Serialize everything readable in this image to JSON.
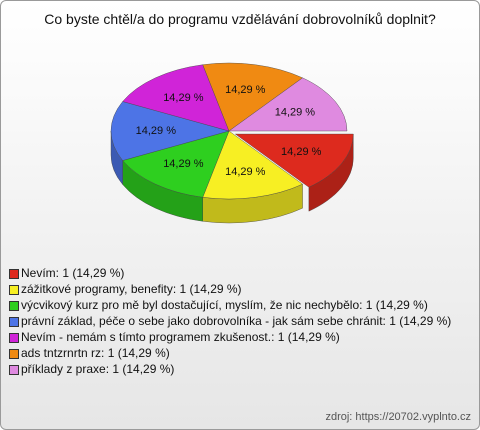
{
  "chart_data": {
    "type": "pie",
    "title": "Co byste chtěl/a do programu vzdělávání dobrovolníků doplnit?",
    "categories": [
      "Nevím: 1 (14,29 %)",
      "zážitkové programy, benefity: 1 (14,29 %)",
      "výcvikový kurz pro mě byl dostačující, myslím, že nic nechybělo: 1 (14,29 %)",
      "právní základ, péče o sebe jako dobrovolníka - jak sám sebe chránit: 1 (14,29 %)",
      "Nevím - nemám s tímto programem zkušenost.: 1 (14,29 %)",
      "ads tntzrnrtn  rz: 1 (14,29 %)",
      "příklady z praxe: 1 (14,29 %)"
    ],
    "values": [
      14.29,
      14.29,
      14.29,
      14.29,
      14.29,
      14.29,
      14.29
    ],
    "value_labels": [
      "14,29 %",
      "14,29 %",
      "14,29 %",
      "14,29 %",
      "14,29 %",
      "14,29 %",
      "14,29 %"
    ],
    "colors": [
      "#dd2a1e",
      "#f7ef23",
      "#2ecf1f",
      "#4d74e6",
      "#d024d8",
      "#f08a12",
      "#df8ae0"
    ],
    "source": "zdroj: https://20702.vyplnto.cz"
  }
}
